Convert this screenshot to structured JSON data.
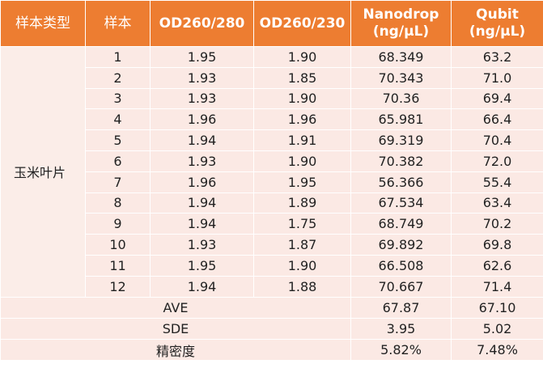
{
  "table": {
    "headers": [
      "样本类型",
      "样本",
      "OD260/280",
      "OD260/230",
      "Nanodrop\n(ng/μL)",
      "Qubit\n(ng/μL)"
    ],
    "sample_type": "玉米叶片",
    "rows": [
      [
        "1",
        "1.95",
        "1.90",
        "68.349",
        "63.2"
      ],
      [
        "2",
        "1.93",
        "1.85",
        "70.343",
        "71.0"
      ],
      [
        "3",
        "1.93",
        "1.90",
        "70.36",
        "69.4"
      ],
      [
        "4",
        "1.96",
        "1.96",
        "65.981",
        "66.4"
      ],
      [
        "5",
        "1.94",
        "1.91",
        "69.319",
        "70.4"
      ],
      [
        "6",
        "1.93",
        "1.90",
        "70.382",
        "72.0"
      ],
      [
        "7",
        "1.96",
        "1.95",
        "56.366",
        "55.4"
      ],
      [
        "8",
        "1.94",
        "1.89",
        "67.534",
        "63.4"
      ],
      [
        "9",
        "1.94",
        "1.75",
        "68.749",
        "70.2"
      ],
      [
        "10",
        "1.93",
        "1.87",
        "69.892",
        "69.8"
      ],
      [
        "11",
        "1.95",
        "1.90",
        "66.508",
        "62.6"
      ],
      [
        "12",
        "1.94",
        "1.88",
        "70.667",
        "71.4"
      ]
    ],
    "summary": [
      {
        "label": "AVE",
        "nanodrop": "67.87",
        "qubit": "67.10"
      },
      {
        "label": "SDE",
        "nanodrop": "3.95",
        "qubit": "5.02"
      },
      {
        "label": "精密度",
        "nanodrop": "5.82%",
        "qubit": "7.48%"
      }
    ]
  },
  "colors": {
    "header": "#ED7D31",
    "body": "#FBE9E4"
  }
}
